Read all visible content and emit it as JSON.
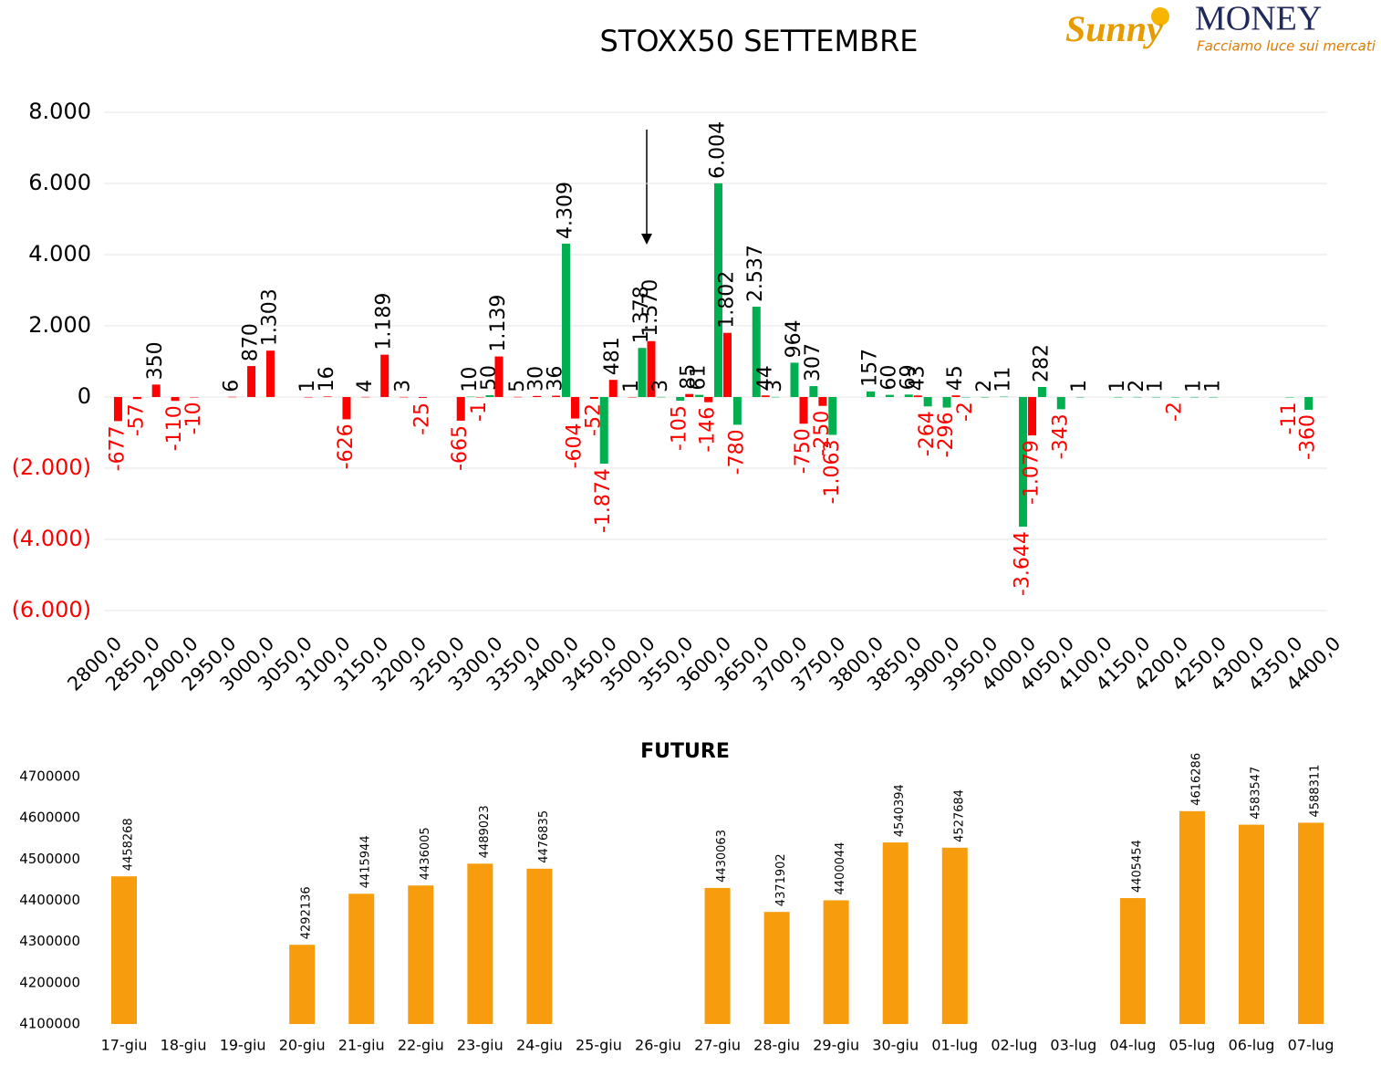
{
  "logo": {
    "brand": "Sunny",
    "name": "MONEY",
    "tagline": "Facciamo luce sui mercati"
  },
  "chart_data": [
    {
      "type": "bar",
      "title": "STOXX50 SETTEMBRE",
      "categories": [
        "2800,0",
        null,
        "2850,0",
        null,
        "2900,0",
        null,
        "2950,0",
        null,
        "3000,0",
        null,
        "3050,0",
        null,
        "3100,0",
        null,
        "3150,0",
        null,
        "3200,0",
        null,
        "3250,0",
        null,
        "3300,0",
        null,
        "3350,0",
        null,
        "3400,0",
        null,
        "3450,0",
        null,
        "3500,0",
        null,
        "3550,0",
        null,
        "3600,0",
        null,
        "3650,0",
        null,
        "3700,0",
        null,
        "3750,0",
        null,
        "3800,0",
        null,
        "3850,0",
        null,
        "3900,0",
        null,
        "3950,0",
        null,
        "4000,0",
        null,
        "4050,0",
        null,
        "4100,0",
        null,
        "4150,0",
        null,
        "4200,0",
        null,
        "4250,0",
        null,
        "4300,0",
        null,
        "4350,0",
        null,
        "4400,0"
      ],
      "series": [
        {
          "color": "#00b050",
          "values": [
            null,
            null,
            null,
            null,
            null,
            null,
            null,
            null,
            null,
            null,
            null,
            null,
            null,
            null,
            null,
            null,
            null,
            null,
            null,
            10,
            50,
            null,
            null,
            null,
            4309,
            null,
            -1874,
            null,
            1378,
            3,
            -105,
            61,
            6004,
            -780,
            2537,
            3,
            964,
            307,
            -1063,
            null,
            157,
            60,
            69,
            -264,
            -296,
            -2,
            2,
            11,
            -3644,
            282,
            -343,
            1,
            null,
            1,
            2,
            1,
            -2,
            1,
            1,
            null,
            null,
            null,
            -11,
            -360,
            null
          ],
          "value_labels": [
            null,
            null,
            null,
            null,
            null,
            null,
            null,
            null,
            null,
            null,
            null,
            null,
            null,
            null,
            null,
            null,
            null,
            null,
            null,
            "10",
            "50",
            null,
            null,
            null,
            "4.309",
            null,
            "-1.874",
            null,
            "1.378",
            "3",
            "-105",
            "61",
            "6.004",
            "-780",
            "2.537",
            "3",
            "964",
            "307",
            "-1.063",
            null,
            "157",
            "60",
            "69",
            "-264",
            "-296",
            "-2",
            "2",
            "11",
            "-3.644",
            "282",
            "-343",
            "1",
            null,
            "1",
            "2",
            "1",
            "-2",
            "1",
            "1",
            null,
            null,
            null,
            "-11",
            "-360",
            null
          ]
        },
        {
          "color": "#ff0000",
          "values": [
            -677,
            -57,
            350,
            -110,
            -10,
            null,
            6,
            870,
            1303,
            null,
            1,
            16,
            -626,
            4,
            1189,
            3,
            -25,
            null,
            -665,
            -1,
            1139,
            5,
            30,
            36,
            -604,
            -52,
            481,
            1,
            1570,
            null,
            85,
            -146,
            1802,
            null,
            44,
            null,
            -750,
            -250,
            null,
            null,
            null,
            null,
            43,
            null,
            45,
            null,
            null,
            null,
            -1079,
            null,
            null,
            null,
            null,
            null,
            null,
            null,
            null,
            null,
            null,
            null,
            null,
            null,
            null,
            null,
            null
          ],
          "value_labels": [
            "-677",
            "-57",
            "350",
            "-110",
            "-10",
            null,
            "6",
            "870",
            "1.303",
            null,
            "1",
            "16",
            "-626",
            "4",
            "1.189",
            "3",
            "-25",
            null,
            "-665",
            "-1",
            "1.139",
            "5",
            "30",
            "36",
            "-604",
            "-52",
            "481",
            "1",
            "1.570",
            null,
            "85",
            "-146",
            "1.802",
            null,
            "44",
            null,
            "-750",
            "-250",
            null,
            null,
            null,
            null,
            "43",
            null,
            "45",
            null,
            null,
            null,
            "-1.079",
            null,
            null,
            null,
            null,
            null,
            null,
            null,
            null,
            null,
            null,
            null,
            null,
            null,
            null,
            null,
            null
          ]
        }
      ],
      "ylim": [
        -6000,
        8000
      ],
      "yticks": [
        {
          "value": -6000,
          "label": "(6.000)"
        },
        {
          "value": -4000,
          "label": "(4.000)"
        },
        {
          "value": -2000,
          "label": "(2.000)"
        },
        0,
        {
          "value": 2000,
          "label": "2.000"
        },
        {
          "value": 4000,
          "label": "4.000"
        },
        {
          "value": 6000,
          "label": "6.000"
        },
        {
          "value": 8000,
          "label": "8.000"
        }
      ],
      "grid": true
    },
    {
      "type": "bar",
      "title": "FUTURE",
      "categories": [
        "17-giu",
        "18-giu",
        "19-giu",
        "20-giu",
        "21-giu",
        "22-giu",
        "23-giu",
        "24-giu",
        "25-giu",
        "26-giu",
        "27-giu",
        "28-giu",
        "29-giu",
        "30-giu",
        "01-lug",
        "02-lug",
        "03-lug",
        "04-lug",
        "05-lug",
        "06-lug",
        "07-lug"
      ],
      "values": [
        4458268,
        null,
        null,
        4292136,
        4415944,
        4436005,
        4489023,
        4476835,
        null,
        null,
        4430063,
        4371902,
        4400044,
        4540394,
        4527684,
        null,
        null,
        4405454,
        4616286,
        4583547,
        4588311
      ],
      "color": "#f79c0c",
      "ylim": [
        4100000,
        4700000
      ],
      "yticks": [
        4100000,
        4200000,
        4300000,
        4400000,
        4500000,
        4600000,
        4700000
      ],
      "grid": false
    }
  ]
}
